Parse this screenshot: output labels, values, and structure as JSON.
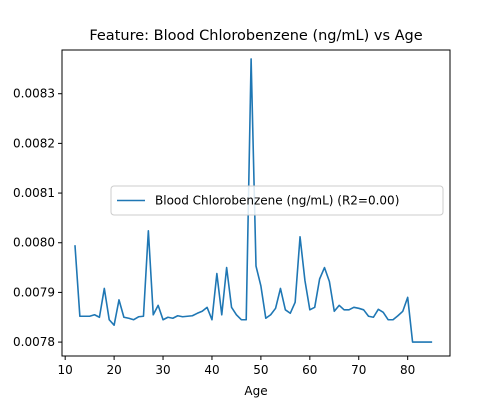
{
  "chart_data": {
    "type": "line",
    "title": "Feature: Blood Chlorobenzene (ng/mL) vs Age",
    "xlabel": "Age",
    "ylabel": "",
    "xlim": [
      9.35,
      88.65
    ],
    "ylim": [
      0.007772,
      0.008388
    ],
    "xticks": [
      10,
      20,
      30,
      40,
      50,
      60,
      70,
      80
    ],
    "yticks": [
      0.0078,
      0.0079,
      0.008,
      0.0081,
      0.0082,
      0.0083
    ],
    "ytick_labels": [
      "0.0078",
      "0.0079",
      "0.0080",
      "0.0081",
      "0.0082",
      "0.0083"
    ],
    "legend_position": "center-right",
    "grid": false,
    "series": [
      {
        "name": "Blood Chlorobenzene (ng/mL) (R2=0.00)",
        "color": "#1f77b4",
        "x": [
          12,
          13,
          14,
          15,
          16,
          17,
          18,
          19,
          20,
          21,
          22,
          23,
          24,
          25,
          26,
          27,
          28,
          29,
          30,
          31,
          32,
          33,
          34,
          35,
          36,
          37,
          38,
          39,
          40,
          41,
          42,
          43,
          44,
          45,
          46,
          47,
          48,
          49,
          50,
          51,
          52,
          53,
          54,
          55,
          56,
          57,
          58,
          59,
          60,
          61,
          62,
          63,
          64,
          65,
          66,
          67,
          68,
          69,
          70,
          71,
          72,
          73,
          74,
          75,
          76,
          77,
          78,
          79,
          80,
          81,
          82,
          83,
          84,
          85
        ],
        "y": [
          0.007995,
          0.007852,
          0.007852,
          0.007852,
          0.007855,
          0.00785,
          0.007908,
          0.007845,
          0.007834,
          0.007885,
          0.00785,
          0.007848,
          0.007845,
          0.007851,
          0.007852,
          0.008024,
          0.007855,
          0.007874,
          0.007845,
          0.00785,
          0.007848,
          0.007853,
          0.007851,
          0.007852,
          0.007853,
          0.007858,
          0.007862,
          0.00787,
          0.007845,
          0.007938,
          0.007855,
          0.00795,
          0.00787,
          0.007855,
          0.007845,
          0.007845,
          0.00837,
          0.007953,
          0.007913,
          0.007848,
          0.007855,
          0.007868,
          0.007908,
          0.007865,
          0.007858,
          0.00788,
          0.008012,
          0.007924,
          0.007865,
          0.00787,
          0.007927,
          0.00795,
          0.007922,
          0.007862,
          0.007874,
          0.007865,
          0.007865,
          0.00787,
          0.007868,
          0.007865,
          0.007852,
          0.00785,
          0.007866,
          0.00786,
          0.007845,
          0.007845,
          0.007853,
          0.007862,
          0.00789,
          0.0078,
          0.0078,
          0.0078,
          0.0078,
          0.0078
        ]
      }
    ]
  }
}
